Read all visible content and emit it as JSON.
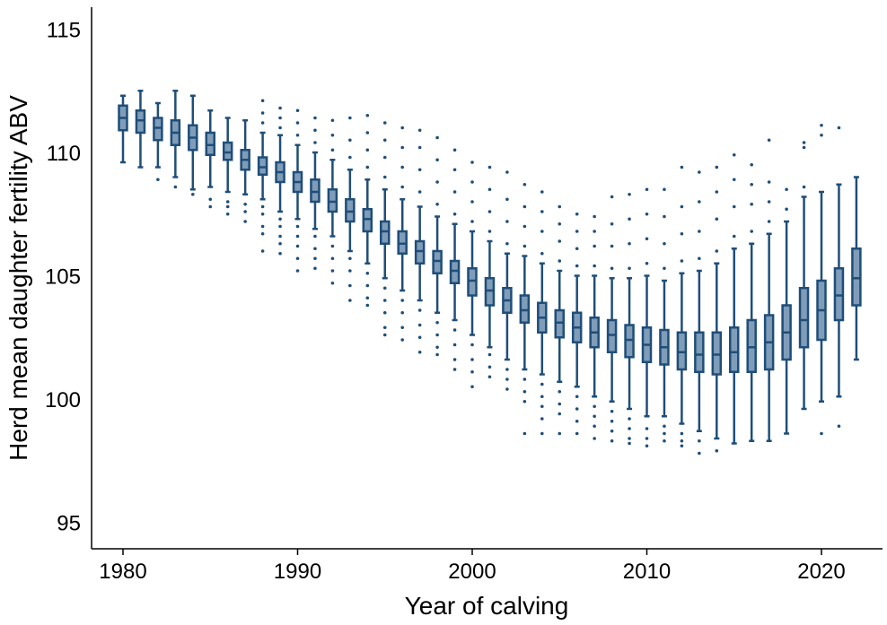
{
  "chart_data": {
    "type": "boxplot",
    "xlabel": "Year of calving",
    "ylabel": "Herd mean daughter fertility ABV",
    "xlim": [
      1979,
      2023
    ],
    "ylim": [
      94,
      116
    ],
    "x_ticks": [
      1980,
      1990,
      2000,
      2010,
      2020
    ],
    "y_ticks": [
      95,
      100,
      105,
      110,
      115
    ],
    "grid": false,
    "legend": "none",
    "colors": {
      "box_fill": "#7f9cb9",
      "line": "#1f4e79",
      "axis": "#000000"
    },
    "boxes": [
      {
        "year": 1980,
        "whisker_low": 109.6,
        "q1": 110.9,
        "median": 111.4,
        "q3": 111.9,
        "whisker_high": 112.3,
        "outliers": []
      },
      {
        "year": 1981,
        "whisker_low": 109.4,
        "q1": 110.8,
        "median": 111.3,
        "q3": 111.7,
        "whisker_high": 112.5,
        "outliers": []
      },
      {
        "year": 1982,
        "whisker_low": 109.4,
        "q1": 110.5,
        "median": 111.0,
        "q3": 111.4,
        "whisker_high": 112.0,
        "outliers": [
          108.9
        ]
      },
      {
        "year": 1983,
        "whisker_low": 109.0,
        "q1": 110.3,
        "median": 110.8,
        "q3": 111.3,
        "whisker_high": 112.5,
        "outliers": [
          108.6
        ]
      },
      {
        "year": 1984,
        "whisker_low": 108.5,
        "q1": 110.1,
        "median": 110.6,
        "q3": 111.1,
        "whisker_high": 112.3,
        "outliers": [
          108.3
        ]
      },
      {
        "year": 1985,
        "whisker_low": 108.6,
        "q1": 109.9,
        "median": 110.3,
        "q3": 110.8,
        "whisker_high": 111.7,
        "outliers": [
          108.1,
          107.8
        ]
      },
      {
        "year": 1986,
        "whisker_low": 108.4,
        "q1": 109.7,
        "median": 110.0,
        "q3": 110.4,
        "whisker_high": 111.4,
        "outliers": [
          108.0,
          107.8,
          107.5
        ]
      },
      {
        "year": 1987,
        "whisker_low": 108.3,
        "q1": 109.3,
        "median": 109.7,
        "q3": 110.1,
        "whisker_high": 111.3,
        "outliers": [
          107.9,
          107.6,
          107.2
        ]
      },
      {
        "year": 1988,
        "whisker_low": 108.1,
        "q1": 109.1,
        "median": 109.4,
        "q3": 109.8,
        "whisker_high": 110.8,
        "outliers": [
          107.8,
          107.5,
          107.0,
          106.7,
          106.0,
          111.2,
          111.6,
          112.1
        ]
      },
      {
        "year": 1989,
        "whisker_low": 107.6,
        "q1": 108.8,
        "median": 109.2,
        "q3": 109.6,
        "whisker_high": 110.7,
        "outliers": [
          107.3,
          107.0,
          106.6,
          106.3,
          105.9,
          111.0,
          111.4,
          111.8
        ]
      },
      {
        "year": 1990,
        "whisker_low": 107.3,
        "q1": 108.4,
        "median": 108.8,
        "q3": 109.2,
        "whisker_high": 110.3,
        "outliers": [
          107.0,
          106.6,
          106.2,
          105.7,
          105.2,
          110.7,
          111.2,
          111.7
        ]
      },
      {
        "year": 1991,
        "whisker_low": 106.9,
        "q1": 108.0,
        "median": 108.4,
        "q3": 108.9,
        "whisker_high": 110.0,
        "outliers": [
          106.6,
          106.1,
          105.7,
          105.3,
          110.4,
          110.9,
          111.4
        ]
      },
      {
        "year": 1992,
        "whisker_low": 106.6,
        "q1": 107.6,
        "median": 108.0,
        "q3": 108.5,
        "whisker_high": 109.7,
        "outliers": [
          106.2,
          105.7,
          105.2,
          104.7,
          110.1,
          110.7,
          111.3
        ]
      },
      {
        "year": 1993,
        "whisker_low": 106.0,
        "q1": 107.2,
        "median": 107.6,
        "q3": 108.1,
        "whisker_high": 109.3,
        "outliers": [
          105.7,
          105.2,
          104.6,
          104.0,
          109.8,
          110.5,
          111.4
        ]
      },
      {
        "year": 1994,
        "whisker_low": 105.5,
        "q1": 106.8,
        "median": 107.3,
        "q3": 107.7,
        "whisker_high": 108.9,
        "outliers": [
          105.1,
          104.6,
          104.1,
          103.8,
          109.4,
          110.1,
          110.8,
          111.5
        ]
      },
      {
        "year": 1995,
        "whisker_low": 104.9,
        "q1": 106.3,
        "median": 106.8,
        "q3": 107.2,
        "whisker_high": 108.5,
        "outliers": [
          104.5,
          104.0,
          103.5,
          102.9,
          102.6,
          109.0,
          109.8,
          110.5,
          111.2
        ]
      },
      {
        "year": 1996,
        "whisker_low": 104.4,
        "q1": 105.9,
        "median": 106.3,
        "q3": 106.8,
        "whisker_high": 108.1,
        "outliers": [
          104.0,
          103.5,
          102.9,
          102.4,
          108.6,
          109.4,
          110.2,
          111.0
        ]
      },
      {
        "year": 1997,
        "whisker_low": 104.0,
        "q1": 105.5,
        "median": 106.0,
        "q3": 106.4,
        "whisker_high": 107.8,
        "outliers": [
          103.6,
          103.0,
          102.5,
          101.9,
          108.4,
          109.3,
          110.2,
          110.9
        ]
      },
      {
        "year": 1998,
        "whisker_low": 103.5,
        "q1": 105.1,
        "median": 105.6,
        "q3": 106.0,
        "whisker_high": 107.4,
        "outliers": [
          103.1,
          102.6,
          102.1,
          101.8,
          107.9,
          108.8,
          109.7,
          110.6
        ]
      },
      {
        "year": 1999,
        "whisker_low": 103.2,
        "q1": 104.7,
        "median": 105.2,
        "q3": 105.6,
        "whisker_high": 107.1,
        "outliers": [
          102.8,
          102.2,
          101.6,
          101.2,
          107.5,
          108.4,
          109.3,
          110.1
        ]
      },
      {
        "year": 2000,
        "whisker_low": 102.6,
        "q1": 104.2,
        "median": 104.8,
        "q3": 105.3,
        "whisker_high": 106.8,
        "outliers": [
          102.2,
          101.6,
          101.1,
          100.5,
          107.2,
          108.0,
          108.8,
          109.6
        ]
      },
      {
        "year": 2001,
        "whisker_low": 102.1,
        "q1": 103.8,
        "median": 104.4,
        "q3": 104.9,
        "whisker_high": 106.4,
        "outliers": [
          101.8,
          101.3,
          100.9,
          106.8,
          107.6,
          108.5,
          109.4
        ]
      },
      {
        "year": 2002,
        "whisker_low": 101.6,
        "q1": 103.5,
        "median": 104.0,
        "q3": 104.5,
        "whisker_high": 105.9,
        "outliers": [
          101.2,
          100.8,
          100.4,
          106.3,
          107.2,
          108.1,
          109.2
        ]
      },
      {
        "year": 2003,
        "whisker_low": 101.2,
        "q1": 103.1,
        "median": 103.6,
        "q3": 104.2,
        "whisker_high": 105.8,
        "outliers": [
          100.8,
          100.3,
          99.9,
          98.6,
          106.2,
          107.0,
          107.8,
          108.7
        ]
      },
      {
        "year": 2004,
        "whisker_low": 101.0,
        "q1": 102.7,
        "median": 103.3,
        "q3": 103.9,
        "whisker_high": 105.5,
        "outliers": [
          100.6,
          100.1,
          99.7,
          99.2,
          98.6,
          105.9,
          106.8,
          107.6,
          108.4
        ]
      },
      {
        "year": 2005,
        "whisker_low": 100.7,
        "q1": 102.5,
        "median": 103.1,
        "q3": 103.6,
        "whisker_high": 105.2,
        "outliers": [
          100.3,
          99.8,
          99.4,
          98.6,
          105.6,
          106.4,
          107.1,
          107.8
        ]
      },
      {
        "year": 2006,
        "whisker_low": 100.5,
        "q1": 102.3,
        "median": 102.9,
        "q3": 103.5,
        "whisker_high": 105.0,
        "outliers": [
          100.1,
          99.6,
          99.1,
          98.6,
          105.4,
          106.1,
          106.8,
          107.5
        ]
      },
      {
        "year": 2007,
        "whisker_low": 100.1,
        "q1": 102.1,
        "median": 102.7,
        "q3": 103.3,
        "whisker_high": 105.0,
        "outliers": [
          99.7,
          99.3,
          98.9,
          98.4,
          105.4,
          106.2,
          106.8,
          107.4
        ]
      },
      {
        "year": 2008,
        "whisker_low": 99.9,
        "q1": 101.9,
        "median": 102.6,
        "q3": 103.2,
        "whisker_high": 104.9,
        "outliers": [
          99.5,
          99.1,
          98.7,
          98.3,
          105.3,
          106.2,
          107.1,
          108.2
        ]
      },
      {
        "year": 2009,
        "whisker_low": 99.6,
        "q1": 101.7,
        "median": 102.4,
        "q3": 103.0,
        "whisker_high": 104.9,
        "outliers": [
          99.2,
          98.8,
          98.4,
          98.2,
          105.3,
          106.3,
          107.3,
          108.3
        ]
      },
      {
        "year": 2010,
        "whisker_low": 99.3,
        "q1": 101.5,
        "median": 102.2,
        "q3": 102.9,
        "whisker_high": 105.0,
        "outliers": [
          98.8,
          98.4,
          98.1,
          105.5,
          106.5,
          107.5,
          108.5
        ]
      },
      {
        "year": 2011,
        "whisker_low": 99.3,
        "q1": 101.4,
        "median": 102.1,
        "q3": 102.8,
        "whisker_high": 104.8,
        "outliers": [
          98.9,
          98.6,
          98.3,
          105.3,
          106.3,
          107.4,
          108.5
        ]
      },
      {
        "year": 2012,
        "whisker_low": 99.0,
        "q1": 101.2,
        "median": 101.9,
        "q3": 102.7,
        "whisker_high": 105.1,
        "outliers": [
          98.6,
          98.3,
          98.1,
          105.6,
          106.7,
          107.8,
          109.4
        ]
      },
      {
        "year": 2013,
        "whisker_low": 98.7,
        "q1": 101.1,
        "median": 101.8,
        "q3": 102.7,
        "whisker_high": 105.2,
        "outliers": [
          98.3,
          97.8,
          105.7,
          106.8,
          108.0,
          109.2
        ]
      },
      {
        "year": 2014,
        "whisker_low": 98.4,
        "q1": 101.0,
        "median": 101.8,
        "q3": 102.7,
        "whisker_high": 105.5,
        "outliers": [
          97.9,
          106.0,
          107.3,
          108.4,
          109.4
        ]
      },
      {
        "year": 2015,
        "whisker_low": 98.2,
        "q1": 101.1,
        "median": 101.9,
        "q3": 102.9,
        "whisker_high": 106.1,
        "outliers": [
          106.6,
          107.8,
          108.9,
          109.9
        ]
      },
      {
        "year": 2016,
        "whisker_low": 98.3,
        "q1": 101.1,
        "median": 102.1,
        "q3": 103.2,
        "whisker_high": 106.3,
        "outliers": [
          106.8,
          107.9,
          108.7,
          109.5
        ]
      },
      {
        "year": 2017,
        "whisker_low": 98.3,
        "q1": 101.2,
        "median": 102.3,
        "q3": 103.4,
        "whisker_high": 106.7,
        "outliers": [
          107.2,
          108.0,
          108.8,
          110.5
        ]
      },
      {
        "year": 2018,
        "whisker_low": 98.6,
        "q1": 101.6,
        "median": 102.7,
        "q3": 103.8,
        "whisker_high": 107.2,
        "outliers": [
          107.7,
          108.5
        ]
      },
      {
        "year": 2019,
        "whisker_low": 99.6,
        "q1": 102.1,
        "median": 103.2,
        "q3": 104.5,
        "whisker_high": 108.2,
        "outliers": [
          108.6,
          110.2,
          110.4
        ]
      },
      {
        "year": 2020,
        "whisker_low": 99.9,
        "q1": 102.4,
        "median": 103.6,
        "q3": 104.8,
        "whisker_high": 108.4,
        "outliers": [
          98.6,
          110.7,
          111.1
        ]
      },
      {
        "year": 2021,
        "whisker_low": 100.1,
        "q1": 103.2,
        "median": 104.2,
        "q3": 105.3,
        "whisker_high": 108.7,
        "outliers": [
          98.9,
          111.0
        ]
      },
      {
        "year": 2022,
        "whisker_low": 101.6,
        "q1": 103.8,
        "median": 104.9,
        "q3": 106.1,
        "whisker_high": 109.0,
        "outliers": []
      }
    ]
  }
}
